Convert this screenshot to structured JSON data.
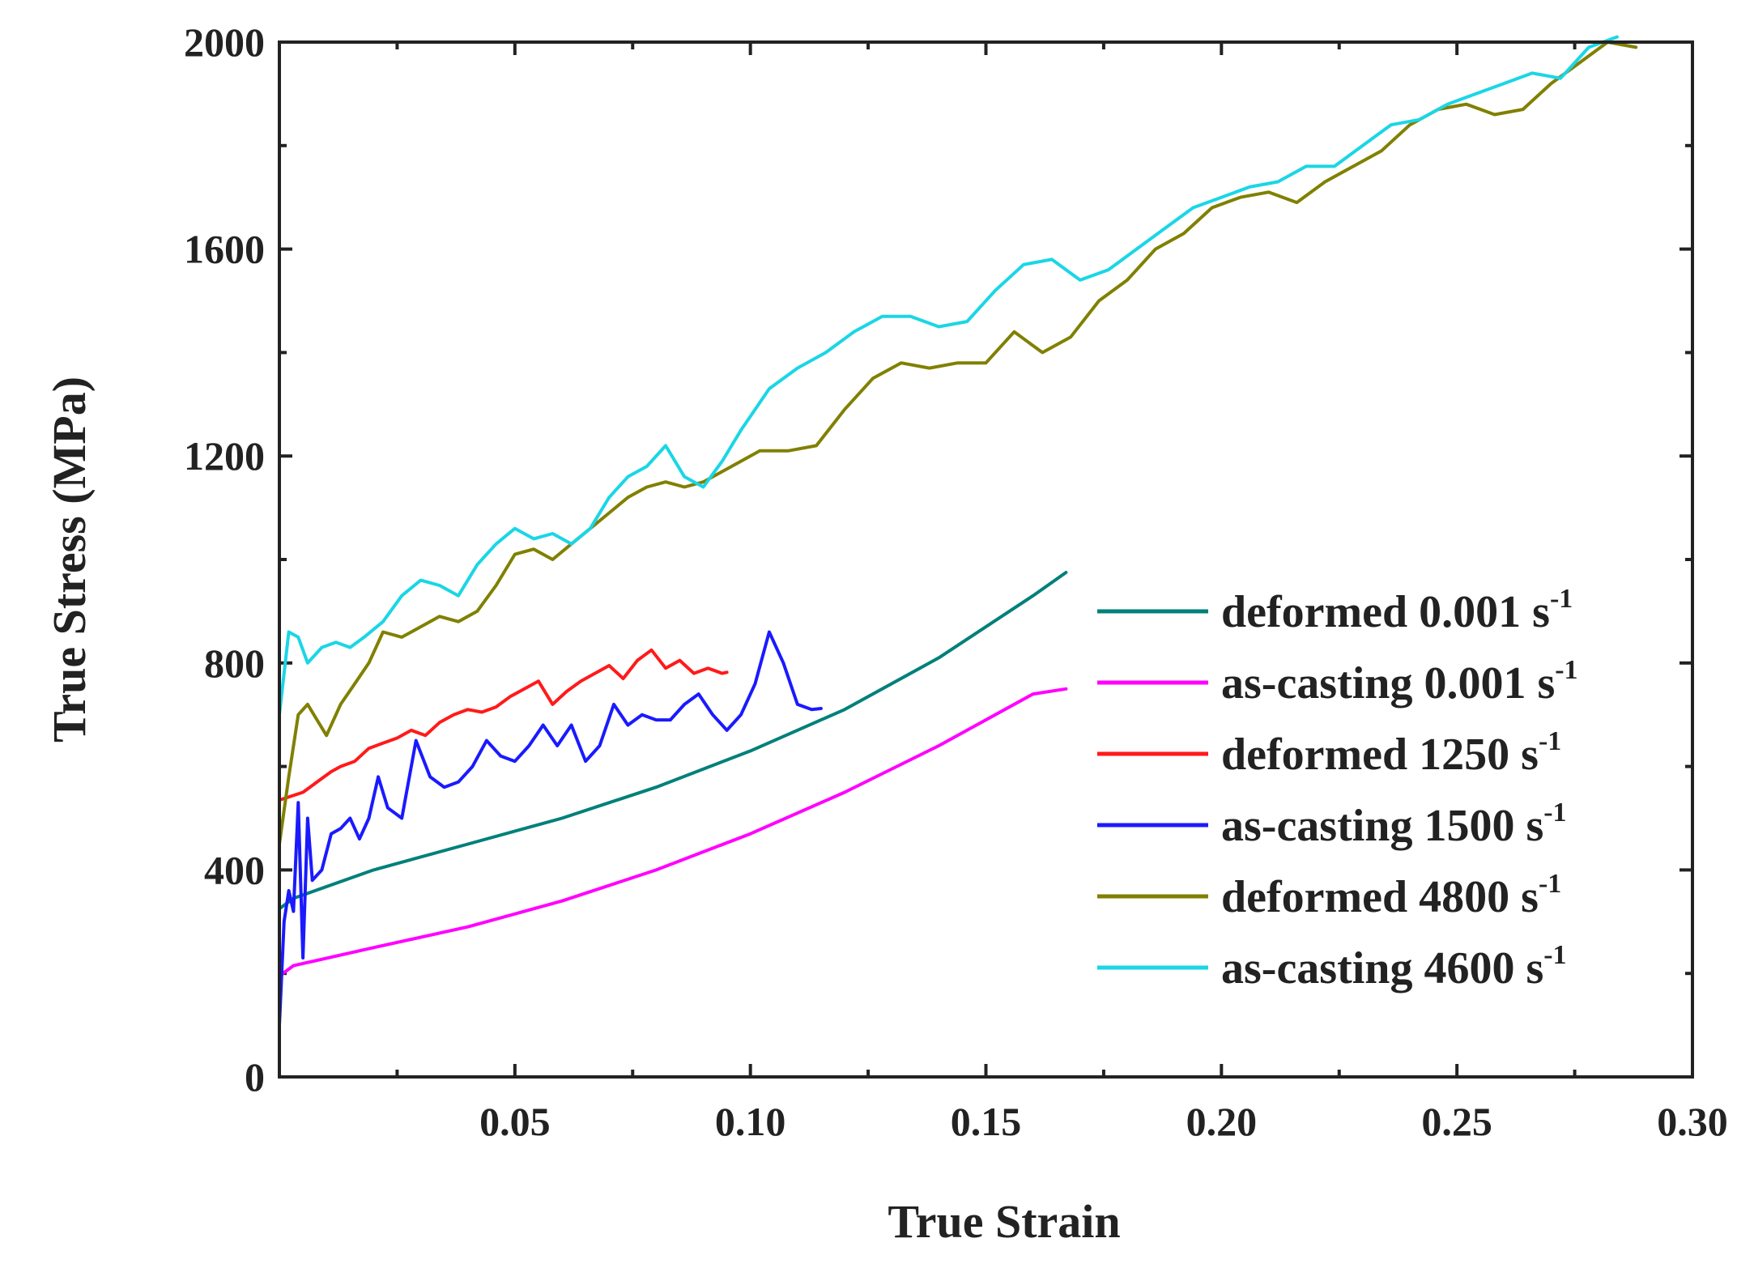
{
  "chart_data": {
    "type": "line",
    "title": "",
    "xlabel": "True Strain",
    "ylabel": "True Stress (MPa)",
    "xlim": [
      0,
      0.3
    ],
    "ylim": [
      0,
      2000
    ],
    "x_ticks": [
      0.05,
      0.1,
      0.15,
      0.2,
      0.25,
      0.3
    ],
    "x_tick_labels": [
      "0.05",
      "0.10",
      "0.15",
      "0.20",
      "0.25",
      "0.30"
    ],
    "y_ticks": [
      0,
      400,
      800,
      1200,
      1600,
      2000
    ],
    "y_tick_labels": [
      "0",
      "400",
      "800",
      "1200",
      "1600",
      "2000"
    ],
    "grid": false,
    "legend_position": "right",
    "series": [
      {
        "name": "deformed 0.001 s",
        "unit_sup": "-1",
        "color": "#00807a",
        "x": [
          0.0,
          0.003,
          0.02,
          0.04,
          0.06,
          0.08,
          0.1,
          0.12,
          0.14,
          0.16,
          0.167
        ],
        "y": [
          325,
          345,
          400,
          450,
          500,
          560,
          630,
          710,
          810,
          930,
          975
        ]
      },
      {
        "name": "as-casting 0.001 s",
        "unit_sup": "-1",
        "color": "#ff00ff",
        "x": [
          0.0,
          0.003,
          0.02,
          0.04,
          0.06,
          0.08,
          0.1,
          0.12,
          0.14,
          0.16,
          0.167
        ],
        "y": [
          195,
          215,
          250,
          290,
          340,
          400,
          470,
          550,
          640,
          740,
          750
        ]
      },
      {
        "name": "deformed 1250 s",
        "unit_sup": "-1",
        "color": "#ff1a1a",
        "x": [
          0.0,
          0.005,
          0.008,
          0.011,
          0.013,
          0.016,
          0.019,
          0.022,
          0.025,
          0.028,
          0.031,
          0.034,
          0.037,
          0.04,
          0.043,
          0.046,
          0.049,
          0.052,
          0.055,
          0.058,
          0.061,
          0.064,
          0.067,
          0.07,
          0.073,
          0.076,
          0.079,
          0.082,
          0.085,
          0.088,
          0.091,
          0.094,
          0.095
        ],
        "y": [
          535,
          550,
          570,
          590,
          600,
          610,
          635,
          645,
          655,
          670,
          660,
          685,
          700,
          710,
          705,
          715,
          735,
          750,
          765,
          720,
          745,
          765,
          780,
          795,
          770,
          805,
          825,
          790,
          805,
          780,
          790,
          780,
          782
        ]
      },
      {
        "name": "as-casting 1500 s",
        "unit_sup": "-1",
        "color": "#1a1aff",
        "x": [
          0.0,
          0.001,
          0.002,
          0.003,
          0.004,
          0.005,
          0.006,
          0.007,
          0.009,
          0.011,
          0.013,
          0.015,
          0.017,
          0.019,
          0.021,
          0.023,
          0.026,
          0.029,
          0.032,
          0.035,
          0.038,
          0.041,
          0.044,
          0.047,
          0.05,
          0.053,
          0.056,
          0.059,
          0.062,
          0.065,
          0.068,
          0.071,
          0.074,
          0.077,
          0.08,
          0.083,
          0.086,
          0.089,
          0.092,
          0.095,
          0.098,
          0.101,
          0.104,
          0.107,
          0.11,
          0.113,
          0.115
        ],
        "y": [
          100,
          300,
          360,
          320,
          530,
          230,
          500,
          380,
          400,
          470,
          480,
          500,
          460,
          500,
          580,
          520,
          500,
          650,
          580,
          560,
          570,
          600,
          650,
          620,
          610,
          640,
          680,
          640,
          680,
          610,
          640,
          720,
          680,
          700,
          690,
          690,
          720,
          740,
          700,
          670,
          700,
          760,
          860,
          800,
          720,
          710,
          712
        ]
      },
      {
        "name": "deformed 4800 s",
        "unit_sup": "-1",
        "color": "#808000",
        "x": [
          0.0,
          0.002,
          0.004,
          0.006,
          0.008,
          0.01,
          0.013,
          0.016,
          0.019,
          0.022,
          0.026,
          0.03,
          0.034,
          0.038,
          0.042,
          0.046,
          0.05,
          0.054,
          0.058,
          0.062,
          0.066,
          0.07,
          0.074,
          0.078,
          0.082,
          0.086,
          0.09,
          0.094,
          0.098,
          0.102,
          0.108,
          0.114,
          0.12,
          0.126,
          0.132,
          0.138,
          0.144,
          0.15,
          0.156,
          0.162,
          0.168,
          0.174,
          0.18,
          0.186,
          0.192,
          0.198,
          0.204,
          0.21,
          0.216,
          0.222,
          0.228,
          0.234,
          0.24,
          0.246,
          0.252,
          0.258,
          0.264,
          0.27,
          0.276,
          0.282,
          0.288
        ],
        "y": [
          450,
          580,
          700,
          720,
          690,
          660,
          720,
          760,
          800,
          860,
          850,
          870,
          890,
          880,
          900,
          950,
          1010,
          1020,
          1000,
          1030,
          1060,
          1090,
          1120,
          1140,
          1150,
          1140,
          1150,
          1170,
          1190,
          1210,
          1210,
          1220,
          1290,
          1350,
          1380,
          1370,
          1380,
          1380,
          1440,
          1400,
          1430,
          1500,
          1540,
          1600,
          1630,
          1680,
          1700,
          1710,
          1690,
          1730,
          1760,
          1790,
          1840,
          1870,
          1880,
          1860,
          1870,
          1920,
          1960,
          2000,
          1990
        ]
      },
      {
        "name": "as-casting 4600 s",
        "unit_sup": "-1",
        "color": "#1ad6e6",
        "x": [
          0.0,
          0.002,
          0.004,
          0.006,
          0.009,
          0.012,
          0.015,
          0.018,
          0.022,
          0.026,
          0.03,
          0.034,
          0.038,
          0.042,
          0.046,
          0.05,
          0.054,
          0.058,
          0.062,
          0.066,
          0.07,
          0.074,
          0.078,
          0.082,
          0.086,
          0.09,
          0.094,
          0.098,
          0.104,
          0.11,
          0.116,
          0.122,
          0.128,
          0.134,
          0.14,
          0.146,
          0.152,
          0.158,
          0.164,
          0.17,
          0.176,
          0.182,
          0.188,
          0.194,
          0.2,
          0.206,
          0.212,
          0.218,
          0.224,
          0.23,
          0.236,
          0.242,
          0.248,
          0.254,
          0.26,
          0.266,
          0.272,
          0.278,
          0.284
        ],
        "y": [
          700,
          860,
          850,
          800,
          830,
          840,
          830,
          850,
          880,
          930,
          960,
          950,
          930,
          990,
          1030,
          1060,
          1040,
          1050,
          1030,
          1060,
          1120,
          1160,
          1180,
          1220,
          1160,
          1140,
          1190,
          1250,
          1330,
          1370,
          1400,
          1440,
          1470,
          1470,
          1450,
          1460,
          1520,
          1570,
          1580,
          1540,
          1560,
          1600,
          1640,
          1680,
          1700,
          1720,
          1730,
          1760,
          1760,
          1800,
          1840,
          1850,
          1880,
          1900,
          1920,
          1940,
          1930,
          1990,
          2010
        ]
      }
    ]
  }
}
